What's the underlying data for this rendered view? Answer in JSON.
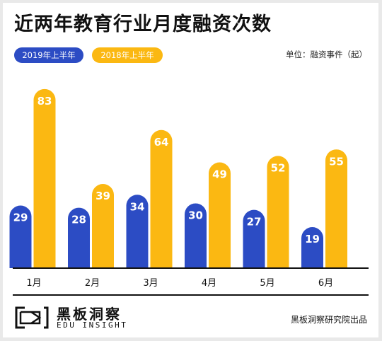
{
  "title": "近两年教育行业月度融资次数",
  "unit_label": "单位：融资事件（起）",
  "colors": {
    "series_2019": "#2c4cc4",
    "series_2018": "#fbb812"
  },
  "brand": {
    "name_cn": "黑板洞察",
    "name_en": "EDU INSIGHT",
    "logo_icon": "edu-insight-logo-icon"
  },
  "credit": "黑板洞察研究院出品",
  "chart_data": {
    "type": "bar",
    "categories": [
      "1月",
      "2月",
      "3月",
      "4月",
      "5月",
      "6月"
    ],
    "series": [
      {
        "name": "2019年上半年",
        "values": [
          29,
          28,
          34,
          30,
          27,
          19
        ]
      },
      {
        "name": "2018年上半年",
        "values": [
          83,
          39,
          64,
          49,
          52,
          55
        ]
      }
    ],
    "data_labels": true,
    "legend": "top-left",
    "ylim": [
      0,
      90
    ],
    "grid": false
  }
}
